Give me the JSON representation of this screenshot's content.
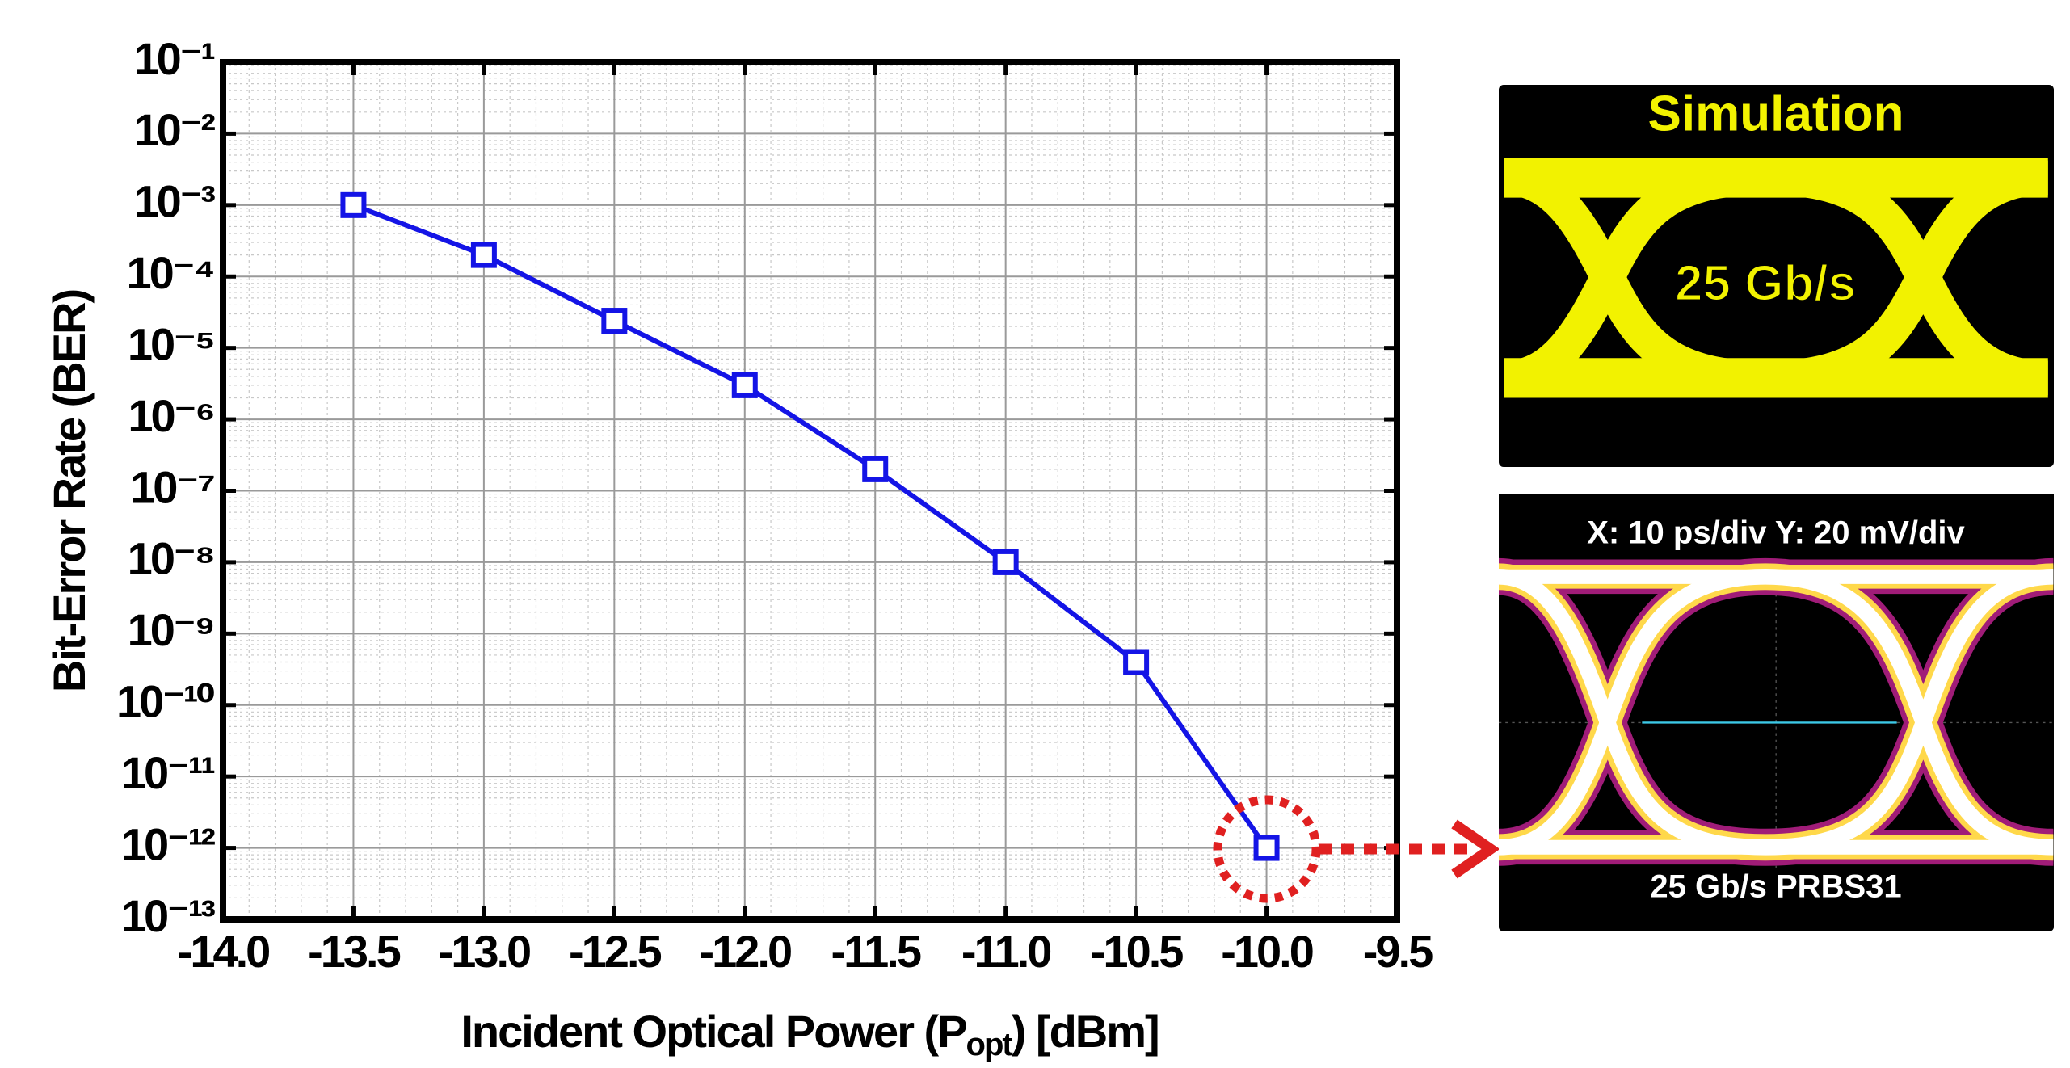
{
  "chart_data": {
    "type": "line",
    "y_label": "Bit-Error Rate (BER)",
    "x_label": "Incident Optical Power (P",
    "x_label_sub": "opt",
    "x_label_end": ") [dBm]",
    "x": [
      -13.5,
      -13.0,
      -12.5,
      -12.0,
      -11.5,
      -11.0,
      -10.5,
      -10.0
    ],
    "values": [
      0.001,
      0.0002,
      2.4e-05,
      3e-06,
      2e-07,
      1e-08,
      4e-10,
      1e-12
    ],
    "color": "#1414e6",
    "marker": "square",
    "xlim": [
      -14.0,
      -9.5
    ],
    "xticks": [
      {
        "value": -14.0,
        "label": "-14.0"
      },
      {
        "value": -13.5,
        "label": "-13.5"
      },
      {
        "value": -13.0,
        "label": "-13.0"
      },
      {
        "value": -12.5,
        "label": "-12.5"
      },
      {
        "value": -12.0,
        "label": "-12.0"
      },
      {
        "value": -11.5,
        "label": "-11.5"
      },
      {
        "value": -11.0,
        "label": "-11.0"
      },
      {
        "value": -10.5,
        "label": "-10.5"
      },
      {
        "value": -10.0,
        "label": "-10.0"
      },
      {
        "value": -9.5,
        "label": "-9.5"
      }
    ],
    "ylim": [
      1e-13,
      0.1
    ],
    "ylog": true,
    "yticks": [
      {
        "value": 0.1,
        "label": "10⁻¹"
      },
      {
        "value": 0.01,
        "label": "10⁻²"
      },
      {
        "value": 0.001,
        "label": "10⁻³"
      },
      {
        "value": 0.0001,
        "label": "10⁻⁴"
      },
      {
        "value": 1e-05,
        "label": "10⁻⁵"
      },
      {
        "value": 1e-06,
        "label": "10⁻⁶"
      },
      {
        "value": 1e-07,
        "label": "10⁻⁷"
      },
      {
        "value": 1e-08,
        "label": "10⁻⁸"
      },
      {
        "value": 1e-09,
        "label": "10⁻⁹"
      },
      {
        "value": 1e-10,
        "label": "10⁻¹⁰"
      },
      {
        "value": 1e-11,
        "label": "10⁻¹¹"
      },
      {
        "value": 1e-12,
        "label": "10⁻¹²"
      },
      {
        "value": 1e-13,
        "label": "10⁻¹³"
      }
    ],
    "grid": true
  },
  "eye_diagrams": {
    "simulation": {
      "title": "Simulation",
      "rate": "25 Gb/s"
    },
    "measurement": {
      "scale": "X: 10 ps/div Y: 20 mV/div",
      "caption": "25 Gb/s PRBS31"
    }
  }
}
